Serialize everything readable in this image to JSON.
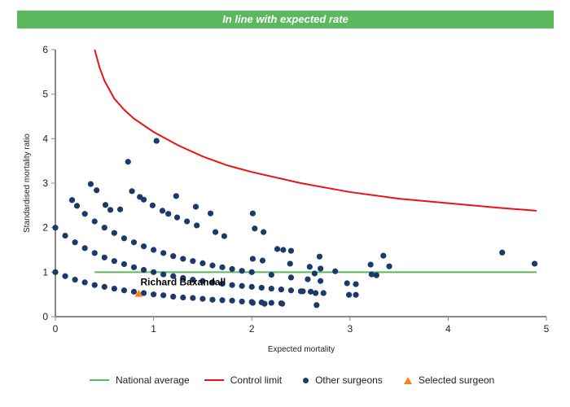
{
  "banner": "In line with expected rate",
  "chart_data": {
    "type": "scatter",
    "title": "In line with expected rate",
    "xlabel": "Expected mortality",
    "ylabel": "Standardised mortality ratio",
    "xlim": [
      0,
      5
    ],
    "ylim": [
      0,
      6
    ],
    "xticks": [
      "0",
      "1",
      "2",
      "3",
      "4",
      "5"
    ],
    "yticks": [
      "0",
      "1",
      "2",
      "3",
      "4",
      "5",
      "6"
    ],
    "colors": {
      "national": "#5cb85c",
      "control": "#ee1111",
      "other": "#1b3a6b",
      "selected": "#f58220"
    },
    "national_average": {
      "name": "National average",
      "y": 1,
      "x": [
        0.4,
        4.9
      ]
    },
    "control_limit": {
      "name": "Control limit",
      "points": [
        [
          0.4,
          6
        ],
        [
          0.45,
          5.6
        ],
        [
          0.5,
          5.3
        ],
        [
          0.6,
          4.9
        ],
        [
          0.7,
          4.65
        ],
        [
          0.8,
          4.45
        ],
        [
          1,
          4.15
        ],
        [
          1.25,
          3.85
        ],
        [
          1.5,
          3.6
        ],
        [
          1.75,
          3.4
        ],
        [
          2,
          3.25
        ],
        [
          2.5,
          3.0
        ],
        [
          3,
          2.8
        ],
        [
          3.5,
          2.65
        ],
        [
          4,
          2.55
        ],
        [
          4.5,
          2.45
        ],
        [
          4.9,
          2.38
        ]
      ]
    },
    "other_surgeons": {
      "name": "Other surgeons",
      "points": [
        [
          0,
          1
        ],
        [
          0.1,
          0.91
        ],
        [
          0.2,
          0.83
        ],
        [
          0.3,
          0.77
        ],
        [
          0.4,
          0.71
        ],
        [
          0.5,
          0.67
        ],
        [
          0.6,
          0.63
        ],
        [
          0.7,
          0.59
        ],
        [
          0.8,
          0.56
        ],
        [
          0.9,
          0.53
        ],
        [
          1,
          0.5
        ],
        [
          1.1,
          0.48
        ],
        [
          1.2,
          0.45
        ],
        [
          1.3,
          0.43
        ],
        [
          1.4,
          0.42
        ],
        [
          1.5,
          0.4
        ],
        [
          1.6,
          0.38
        ],
        [
          1.7,
          0.37
        ],
        [
          1.8,
          0.36
        ],
        [
          1.9,
          0.34
        ],
        [
          2.0,
          0.33
        ],
        [
          2.1,
          0.32
        ],
        [
          2.2,
          0.31
        ],
        [
          2.3,
          0.3
        ],
        [
          0,
          2
        ],
        [
          0.1,
          1.82
        ],
        [
          0.2,
          1.67
        ],
        [
          0.3,
          1.54
        ],
        [
          0.4,
          1.43
        ],
        [
          0.5,
          1.33
        ],
        [
          0.6,
          1.25
        ],
        [
          0.7,
          1.18
        ],
        [
          0.8,
          1.11
        ],
        [
          0.9,
          1.05
        ],
        [
          1,
          1.0
        ],
        [
          1.1,
          0.95
        ],
        [
          1.2,
          0.91
        ],
        [
          1.3,
          0.87
        ],
        [
          1.4,
          0.83
        ],
        [
          1.5,
          0.8
        ],
        [
          1.6,
          0.77
        ],
        [
          1.7,
          0.74
        ],
        [
          1.8,
          0.71
        ],
        [
          1.9,
          0.69
        ],
        [
          2.0,
          0.67
        ],
        [
          2.1,
          0.65
        ],
        [
          2.2,
          0.63
        ],
        [
          2.3,
          0.61
        ],
        [
          2.4,
          0.59
        ],
        [
          2.5,
          0.57
        ],
        [
          2.6,
          0.56
        ],
        [
          0.3,
          2.31
        ],
        [
          0.4,
          2.14
        ],
        [
          0.5,
          2.0
        ],
        [
          0.6,
          1.88
        ],
        [
          0.7,
          1.76
        ],
        [
          0.8,
          1.67
        ],
        [
          0.9,
          1.58
        ],
        [
          1.0,
          1.5
        ],
        [
          1.1,
          1.43
        ],
        [
          1.2,
          1.36
        ],
        [
          1.3,
          1.3
        ],
        [
          1.4,
          1.25
        ],
        [
          1.5,
          1.2
        ],
        [
          1.6,
          1.15
        ],
        [
          1.7,
          1.11
        ],
        [
          1.8,
          1.07
        ],
        [
          1.9,
          1.03
        ],
        [
          2.0,
          1.0
        ],
        [
          2.2,
          0.94
        ],
        [
          2.4,
          0.88
        ],
        [
          1.03,
          3.95
        ],
        [
          0.74,
          3.48
        ],
        [
          0.36,
          2.98
        ],
        [
          0.42,
          2.84
        ],
        [
          0.17,
          2.62
        ],
        [
          0.22,
          2.49
        ],
        [
          0.78,
          2.82
        ],
        [
          0.86,
          2.69
        ],
        [
          0.9,
          2.63
        ],
        [
          1.23,
          2.71
        ],
        [
          1.43,
          2.47
        ],
        [
          1.58,
          2.32
        ],
        [
          2.01,
          2.32
        ],
        [
          0.51,
          2.51
        ],
        [
          0.56,
          2.4
        ],
        [
          0.66,
          2.41
        ],
        [
          0.99,
          2.5
        ],
        [
          1.09,
          2.38
        ],
        [
          1.15,
          2.31
        ],
        [
          1.24,
          2.23
        ],
        [
          1.34,
          2.14
        ],
        [
          1.44,
          2.05
        ],
        [
          1.63,
          1.9
        ],
        [
          1.72,
          1.81
        ],
        [
          2.03,
          1.98
        ],
        [
          2.12,
          1.9
        ],
        [
          2.01,
          1.3
        ],
        [
          2.11,
          1.26
        ],
        [
          2.26,
          1.52
        ],
        [
          2.32,
          1.5
        ],
        [
          2.4,
          1.48
        ],
        [
          2.39,
          1.19
        ],
        [
          2.59,
          1.12
        ],
        [
          2.64,
          0.97
        ],
        [
          2.69,
          1.35
        ],
        [
          2.7,
          1.08
        ],
        [
          2.85,
          1.02
        ],
        [
          2.57,
          0.84
        ],
        [
          2.7,
          0.8
        ],
        [
          2.97,
          0.75
        ],
        [
          3.06,
          0.73
        ],
        [
          3.21,
          1.17
        ],
        [
          3.22,
          0.95
        ],
        [
          3.27,
          0.93
        ],
        [
          3.34,
          1.37
        ],
        [
          3.4,
          1.13
        ],
        [
          4.55,
          1.44
        ],
        [
          4.88,
          1.19
        ],
        [
          2.99,
          0.49
        ],
        [
          3.06,
          0.49
        ],
        [
          2.66,
          0.26
        ],
        [
          2.52,
          0.57
        ],
        [
          2.73,
          0.53
        ],
        [
          2.65,
          0.53
        ],
        [
          2.31,
          0.29
        ],
        [
          2.13,
          0.29
        ],
        [
          2.01,
          0.31
        ]
      ]
    },
    "selected_surgeon": {
      "name": "Selected surgeon",
      "label": "Richard Baxandall",
      "x": 0.85,
      "y": 0.52
    },
    "legend": [
      "National average",
      "Control limit",
      "Other surgeons",
      "Selected surgeon"
    ],
    "legend_position": "bottom"
  }
}
